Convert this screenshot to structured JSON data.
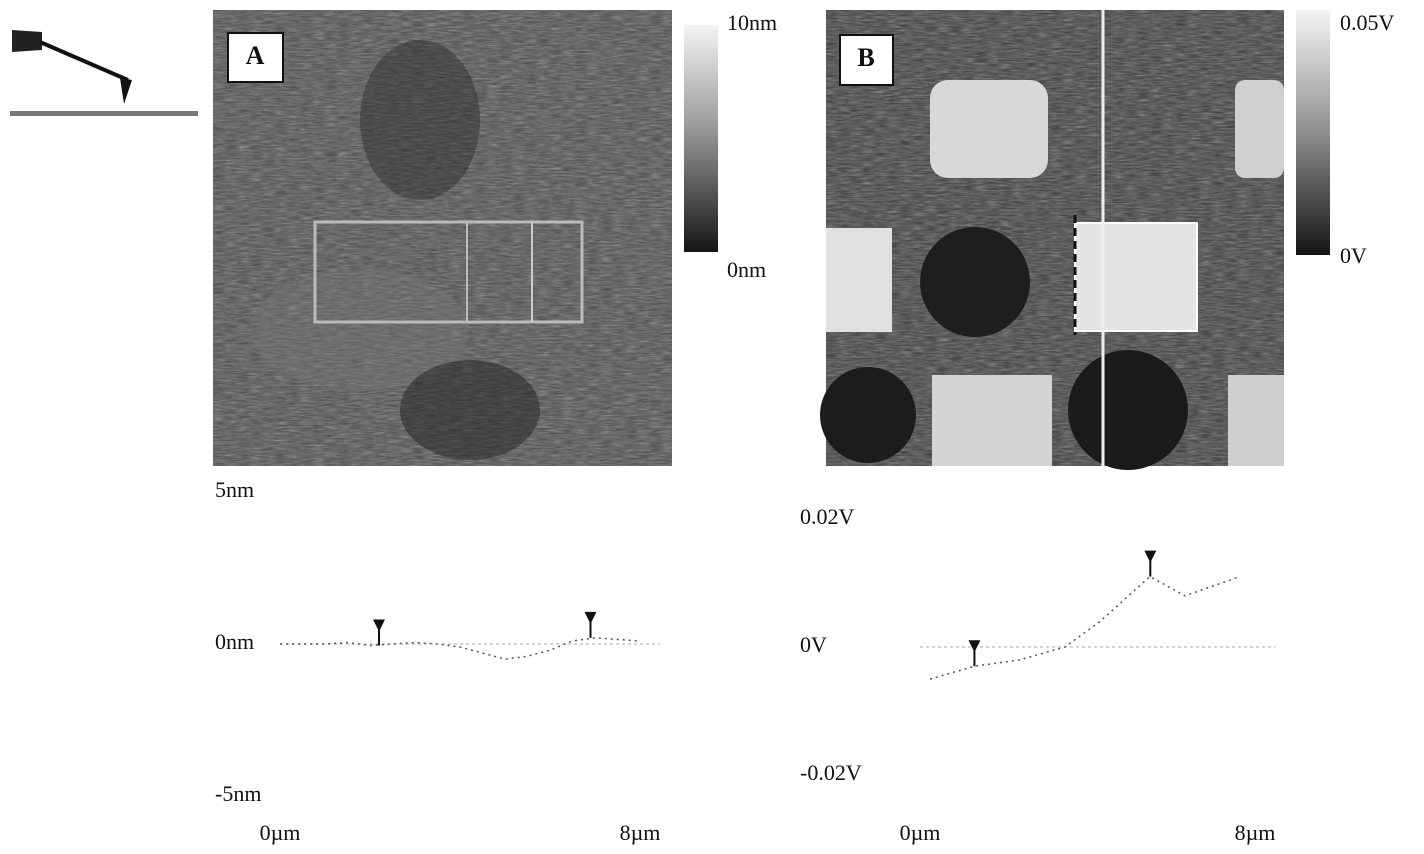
{
  "panels": [
    {
      "label": "A",
      "colorbar": {
        "top": "10nm",
        "bottom": "0nm"
      },
      "profile": {
        "type": "line",
        "x": [
          0,
          0.5,
          1,
          1.5,
          2,
          2.5,
          3,
          3.5,
          4,
          4.5,
          5,
          5.5,
          6,
          6.5,
          7,
          7.5,
          8
        ],
        "values": [
          0,
          0,
          0,
          0.05,
          -0.05,
          0,
          0.05,
          0,
          -0.1,
          -0.3,
          -0.5,
          -0.4,
          -0.2,
          0.1,
          0.2,
          0.15,
          0.1
        ],
        "cursors": [
          2.2,
          6.9
        ],
        "xlim": [
          0,
          8
        ],
        "ylim": [
          -5,
          5
        ],
        "xticks": [
          {
            "value": 0,
            "label": "0µm"
          },
          {
            "value": 8,
            "label": "8µm"
          }
        ],
        "yticks": [
          {
            "value": 5,
            "label": "5nm"
          },
          {
            "value": 0,
            "label": "0nm"
          },
          {
            "value": -5,
            "label": "-5nm"
          }
        ]
      }
    },
    {
      "label": "B",
      "colorbar": {
        "top": "0.05V",
        "bottom": "0V"
      },
      "profile": {
        "type": "line",
        "x": [
          0.24,
          1.31,
          2.39,
          3.46,
          4.3,
          5.49,
          6.33,
          7.64
        ],
        "values": [
          -0.005,
          -0.003,
          -0.002,
          0,
          0.004,
          0.011,
          0.008,
          0.011
        ],
        "cursors": [
          1.3,
          5.5
        ],
        "xlim": [
          0,
          8
        ],
        "ylim": [
          -0.02,
          0.02
        ],
        "xticks": [
          {
            "value": 0,
            "label": "0µm"
          },
          {
            "value": 8,
            "label": "8µm"
          }
        ],
        "yticks": [
          {
            "value": 0.02,
            "label": "0.02V"
          },
          {
            "value": 0,
            "label": "0V"
          },
          {
            "value": -0.02,
            "label": "-0.02V"
          }
        ]
      }
    }
  ]
}
